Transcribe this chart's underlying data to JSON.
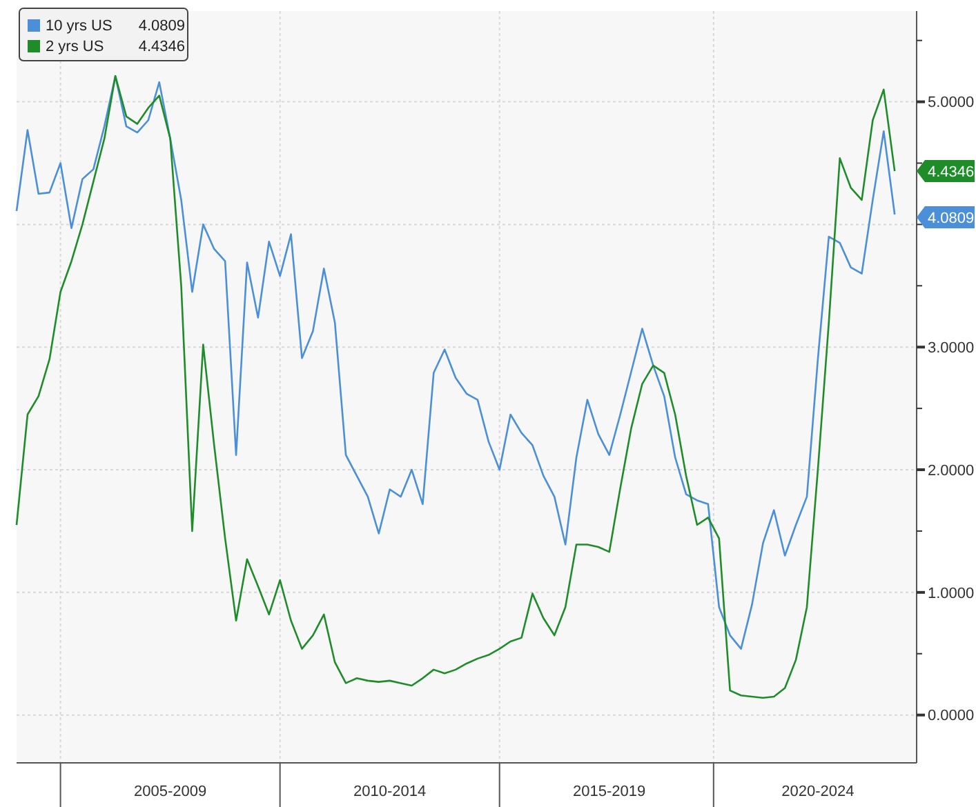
{
  "chart_data": {
    "type": "line",
    "legend": "top left",
    "grid": "y",
    "categories": [
      null,
      null,
      null,
      null,
      null,
      null,
      null,
      null,
      null,
      null,
      null,
      null,
      null,
      null,
      "2005-2009",
      null,
      null,
      null,
      null,
      null,
      null,
      null,
      null,
      null,
      null,
      null,
      null,
      null,
      null,
      null,
      null,
      null,
      null,
      null,
      "2010-2014",
      null,
      null,
      null,
      null,
      null,
      null,
      null,
      null,
      null,
      null,
      null,
      null,
      null,
      null,
      null,
      null,
      null,
      null,
      null,
      "2015-2019",
      null,
      null,
      null,
      null,
      null,
      null,
      null,
      null,
      null,
      null,
      null,
      null,
      null,
      null,
      null,
      null,
      null,
      null,
      "2020-2024",
      null,
      null,
      null,
      null,
      null,
      null,
      null,
      null,
      null
    ],
    "ylim": [
      -0.39,
      5.74
    ],
    "yticks": [
      {
        "value": 0,
        "label": "0.0000"
      },
      {
        "value": 0.5,
        "label": null
      },
      {
        "value": 1,
        "label": "1.0000"
      },
      {
        "value": 1.5,
        "label": null
      },
      {
        "value": 2,
        "label": "2.0000"
      },
      {
        "value": 2.5,
        "label": null
      },
      {
        "value": 3,
        "label": "3.0000"
      },
      {
        "value": 3.5,
        "label": null
      },
      {
        "value": 4,
        "label": null
      },
      {
        "value": 4.5,
        "label": null
      },
      {
        "value": 5,
        "label": "5.0000"
      },
      {
        "value": 5.5,
        "label": null
      }
    ],
    "annotations": [
      "4.0809",
      "4.4346"
    ],
    "series": [
      {
        "name": "10 yrs US",
        "color": "#4a8fd8",
        "values": [
          4.11,
          4.77,
          4.25,
          4.26,
          4.5,
          3.97,
          4.37,
          4.45,
          4.8,
          5.21,
          4.8,
          4.75,
          4.85,
          5.16,
          4.7,
          4.2,
          3.45,
          4.0,
          3.8,
          3.7,
          2.12,
          3.69,
          3.24,
          3.86,
          3.58,
          3.92,
          2.91,
          3.13,
          3.64,
          3.2,
          2.12,
          1.95,
          1.78,
          1.48,
          1.84,
          1.78,
          2.0,
          1.72,
          2.79,
          2.98,
          2.75,
          2.62,
          2.57,
          2.23,
          2.0,
          2.45,
          2.3,
          2.2,
          1.95,
          1.78,
          1.39,
          2.1,
          2.57,
          2.29,
          2.12,
          2.45,
          2.8,
          3.15,
          2.85,
          2.6,
          2.1,
          1.8,
          1.75,
          1.72,
          0.88,
          0.65,
          0.54,
          0.9,
          1.4,
          1.67,
          1.3,
          1.55,
          1.78,
          2.9,
          3.9,
          3.85,
          3.65,
          3.6,
          4.2,
          4.76,
          4.0809,
          null,
          null
        ]
      },
      {
        "name": "2 yrs US",
        "color": "#1f8c2a",
        "values": [
          1.55,
          2.45,
          2.6,
          2.9,
          3.45,
          3.7,
          4.0,
          4.35,
          4.7,
          5.21,
          4.88,
          4.82,
          4.95,
          5.05,
          4.7,
          3.5,
          1.5,
          3.02,
          2.2,
          1.44,
          0.77,
          1.27,
          1.05,
          0.82,
          1.1,
          0.77,
          0.54,
          0.65,
          0.82,
          0.43,
          0.26,
          0.3,
          0.28,
          0.27,
          0.28,
          0.26,
          0.24,
          0.3,
          0.37,
          0.34,
          0.37,
          0.42,
          0.46,
          0.49,
          0.54,
          0.6,
          0.63,
          0.99,
          0.79,
          0.65,
          0.88,
          1.39,
          1.39,
          1.37,
          1.33,
          1.85,
          2.34,
          2.7,
          2.85,
          2.79,
          2.45,
          1.95,
          1.55,
          1.61,
          1.44,
          0.2,
          0.16,
          0.15,
          0.14,
          0.15,
          0.22,
          0.45,
          0.88,
          2.0,
          3.2,
          4.54,
          4.3,
          4.2,
          4.85,
          5.1,
          4.4346,
          null,
          null
        ]
      }
    ]
  }
}
